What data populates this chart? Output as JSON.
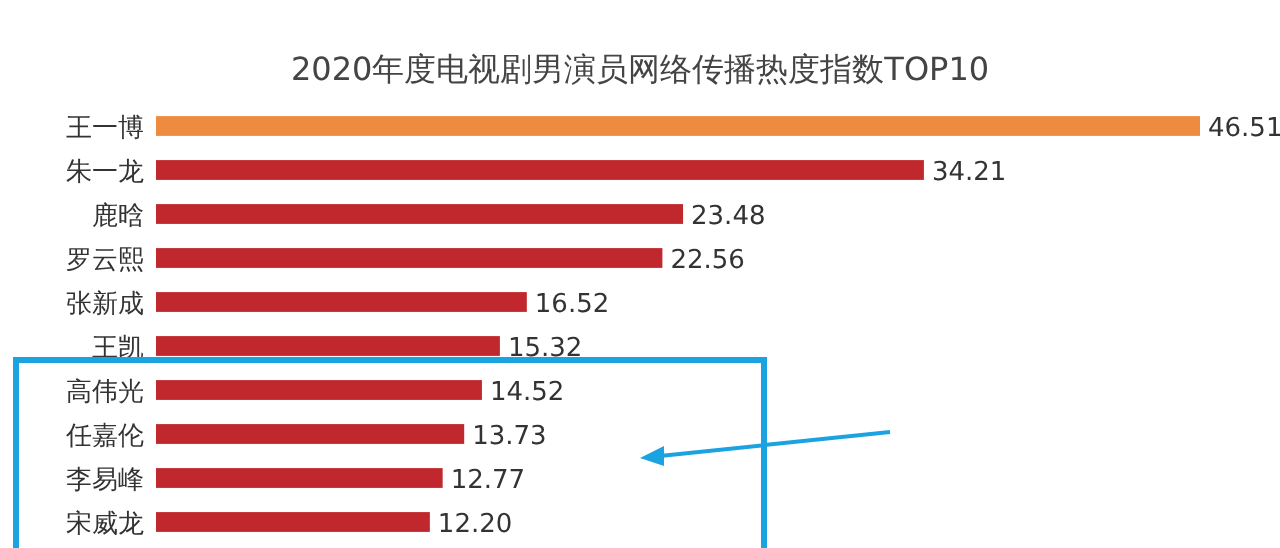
{
  "chart_data": {
    "type": "bar",
    "orientation": "horizontal",
    "title": "2020年度电视剧男演员网络传播热度指数TOP10",
    "categories": [
      "王一博",
      "朱一龙",
      "鹿晗",
      "罗云熙",
      "张新成",
      "王凯",
      "高伟光",
      "任嘉伦",
      "李易峰",
      "宋威龙"
    ],
    "values": [
      46.51,
      34.21,
      23.48,
      22.56,
      16.52,
      15.32,
      14.52,
      13.73,
      12.77,
      12.2
    ],
    "value_labels": [
      "46.51",
      "34.21",
      "23.48",
      "22.56",
      "16.52",
      "15.32",
      "14.52",
      "13.73",
      "12.77",
      "12.20"
    ],
    "colors": [
      "#ef8b3f",
      "#c0282d",
      "#c0282d",
      "#c0282d",
      "#c0282d",
      "#c0282d",
      "#c0282d",
      "#c0282d",
      "#c0282d",
      "#c0282d"
    ]
  }
}
